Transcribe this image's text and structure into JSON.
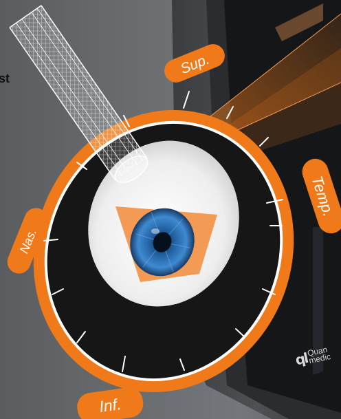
{
  "annotation": {
    "cut_text": "st"
  },
  "orientation_labels": {
    "superior": "Sup.",
    "temporal": "Temp.",
    "nasal": "Nas.",
    "inferior": "Inf."
  },
  "brand": {
    "logo_mark": "ql",
    "logo_line1": "Quan",
    "logo_line2": "medic"
  },
  "colors": {
    "accent": "#f07a1a",
    "accent_soft": "#f39a55",
    "ring_dark": "#161616",
    "background": "#67696c",
    "iris": "#2d6fb0"
  },
  "icons": {
    "probe": "ultrasound-probe-icon",
    "eye": "eye-icon",
    "scan_beam": "scan-beam-icon"
  }
}
